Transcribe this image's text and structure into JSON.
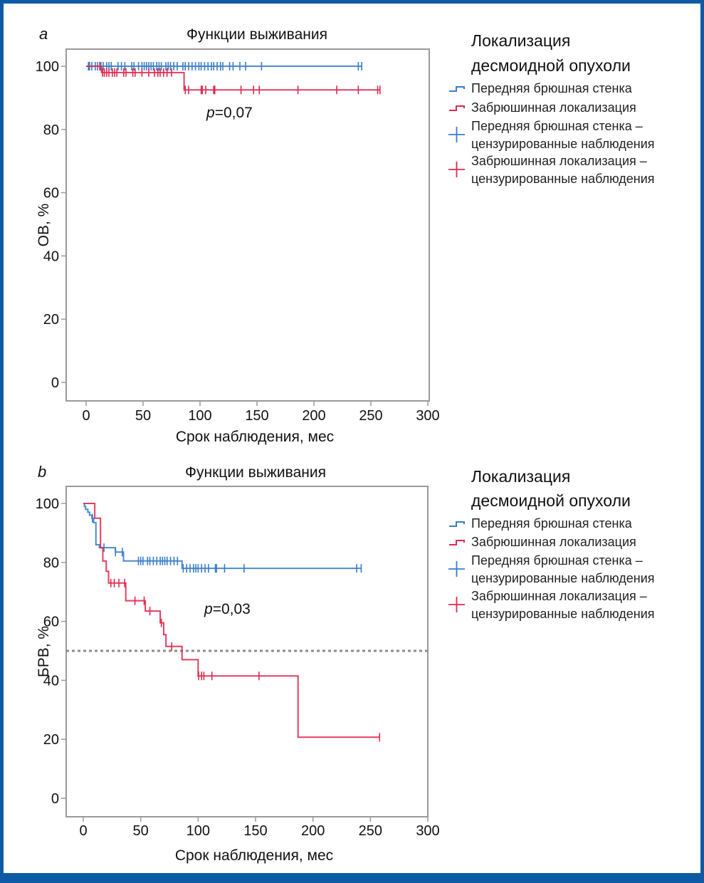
{
  "figure": {
    "frame_color": "#0e5aa7",
    "colors": {
      "anterior": "#3a7dc8",
      "retroperitoneal": "#e0294f",
      "axis": "#9a9a9a",
      "median_line": "#8c8c8c"
    }
  },
  "chart_data": [
    {
      "type": "line",
      "panel": "a",
      "title": "Функции выживания",
      "xlabel": "Срок наблюдения, мес",
      "ylabel": "ОВ, %",
      "xlim": [
        0,
        300
      ],
      "ylim": [
        0,
        100
      ],
      "xticks": [
        0,
        50,
        100,
        150,
        200,
        250,
        300
      ],
      "yticks": [
        0,
        20,
        40,
        60,
        80,
        100
      ],
      "annotation": {
        "prefix": "p",
        "text": "=0,07",
        "x": 60,
        "y": 86
      },
      "median_line": null,
      "legend": {
        "position": "right",
        "title_lines": [
          "Локализация",
          "десмоидной опухоли"
        ],
        "entries": [
          {
            "marker": "step",
            "series": "anterior",
            "lines": [
              "Передняя брюшная стенка"
            ]
          },
          {
            "marker": "step",
            "series": "retroperitoneal",
            "lines": [
              "Забрюшинная локализация"
            ]
          },
          {
            "marker": "cross",
            "series": "anterior",
            "lines": [
              "Передняя брюшная стенка –",
              "цензурированные наблюдения"
            ]
          },
          {
            "marker": "cross",
            "series": "retroperitoneal",
            "lines": [
              "Забрюшинная локализация –",
              "цензурированные наблюдения"
            ]
          }
        ]
      },
      "series": [
        {
          "name": "Передняя брюшная стенка",
          "key": "anterior",
          "steps": [
            [
              0,
              100
            ]
          ],
          "end": 242,
          "censored": [
            2,
            3,
            5,
            8,
            10,
            12,
            13,
            15,
            18,
            20,
            22,
            28,
            31,
            34,
            40,
            42,
            46,
            49,
            51,
            53,
            55,
            57,
            59,
            62,
            64,
            66,
            70,
            72,
            74,
            77,
            80,
            85,
            87,
            90,
            93,
            96,
            99,
            101,
            104,
            107,
            110,
            112,
            115,
            118,
            120,
            126,
            129,
            135,
            140,
            154,
            239,
            242
          ]
        },
        {
          "name": "Забрюшинная локализация",
          "key": "retroperitoneal",
          "steps": [
            [
              0,
              100
            ],
            [
              13.5,
              98
            ],
            [
              86,
              92.5
            ]
          ],
          "end": 258,
          "censored": [
            12,
            14.5,
            16,
            18,
            20,
            23,
            25,
            27,
            33,
            35,
            41,
            43,
            49,
            55,
            60,
            63,
            65,
            68,
            71,
            75,
            87,
            90,
            101,
            102,
            105,
            112,
            113,
            136,
            147,
            152,
            186,
            220,
            239,
            256,
            258
          ]
        }
      ]
    },
    {
      "type": "line",
      "panel": "b",
      "title": "Функции выживания",
      "xlabel": "Срок наблюдения, мес",
      "ylabel": "БРВ, %",
      "xlim": [
        0,
        300
      ],
      "ylim": [
        0,
        100
      ],
      "xticks": [
        0,
        50,
        100,
        150,
        200,
        250,
        300
      ],
      "yticks": [
        0,
        20,
        40,
        60,
        80,
        100
      ],
      "annotation": {
        "prefix": "p",
        "text": "=0,03",
        "x": 60,
        "y": 65
      },
      "median_line": 50,
      "legend": {
        "position": "right",
        "title_lines": [
          "Локализация",
          "десмоидной опухоли"
        ],
        "entries": [
          {
            "marker": "step",
            "series": "anterior",
            "lines": [
              "Передняя брюшная стенка"
            ]
          },
          {
            "marker": "step",
            "series": "retroperitoneal",
            "lines": [
              "Забрюшинная локализация"
            ]
          },
          {
            "marker": "cross",
            "series": "anterior",
            "lines": [
              "Передняя брюшная стенка –",
              "цензурированные наблюдения"
            ]
          },
          {
            "marker": "cross",
            "series": "retroperitoneal",
            "lines": [
              "Забрюшинная локализация –",
              "цензурированные наблюдения"
            ]
          }
        ]
      },
      "series": [
        {
          "name": "Передняя брюшная стенка",
          "key": "anterior",
          "steps": [
            [
              0,
              100
            ],
            [
              1,
              99
            ],
            [
              2,
              98
            ],
            [
              4,
              97
            ],
            [
              5.5,
              96
            ],
            [
              7.5,
              95
            ],
            [
              9,
              93.5
            ],
            [
              11,
              86
            ],
            [
              14,
              85
            ],
            [
              28,
              83.5
            ],
            [
              35,
              80.5
            ],
            [
              86,
              78
            ]
          ],
          "end": 242,
          "censored": [
            8,
            18,
            28,
            34,
            48,
            50,
            52,
            56,
            58,
            61,
            64,
            67,
            69,
            71,
            73,
            76,
            79,
            82,
            87,
            90,
            93,
            96,
            98,
            100,
            103,
            106,
            109,
            115,
            116,
            123,
            140,
            238,
            242
          ]
        },
        {
          "name": "Забрюшинная локализация",
          "key": "retroperitoneal",
          "steps": [
            [
              0,
              100
            ],
            [
              10,
              95
            ],
            [
              15,
              85
            ],
            [
              17,
              80.5
            ],
            [
              20,
              77
            ],
            [
              22,
              73
            ],
            [
              37,
              67
            ],
            [
              54,
              63.5
            ],
            [
              67,
              59.5
            ],
            [
              70,
              55.5
            ],
            [
              72,
              51.5
            ],
            [
              86,
              47
            ],
            [
              100,
              41.5
            ],
            [
              187,
              20.7
            ]
          ],
          "end": 258,
          "censored": [
            24,
            27,
            31,
            36,
            45,
            53,
            58,
            68,
            77,
            100.5,
            103,
            105,
            112,
            153,
            258
          ]
        }
      ]
    }
  ]
}
